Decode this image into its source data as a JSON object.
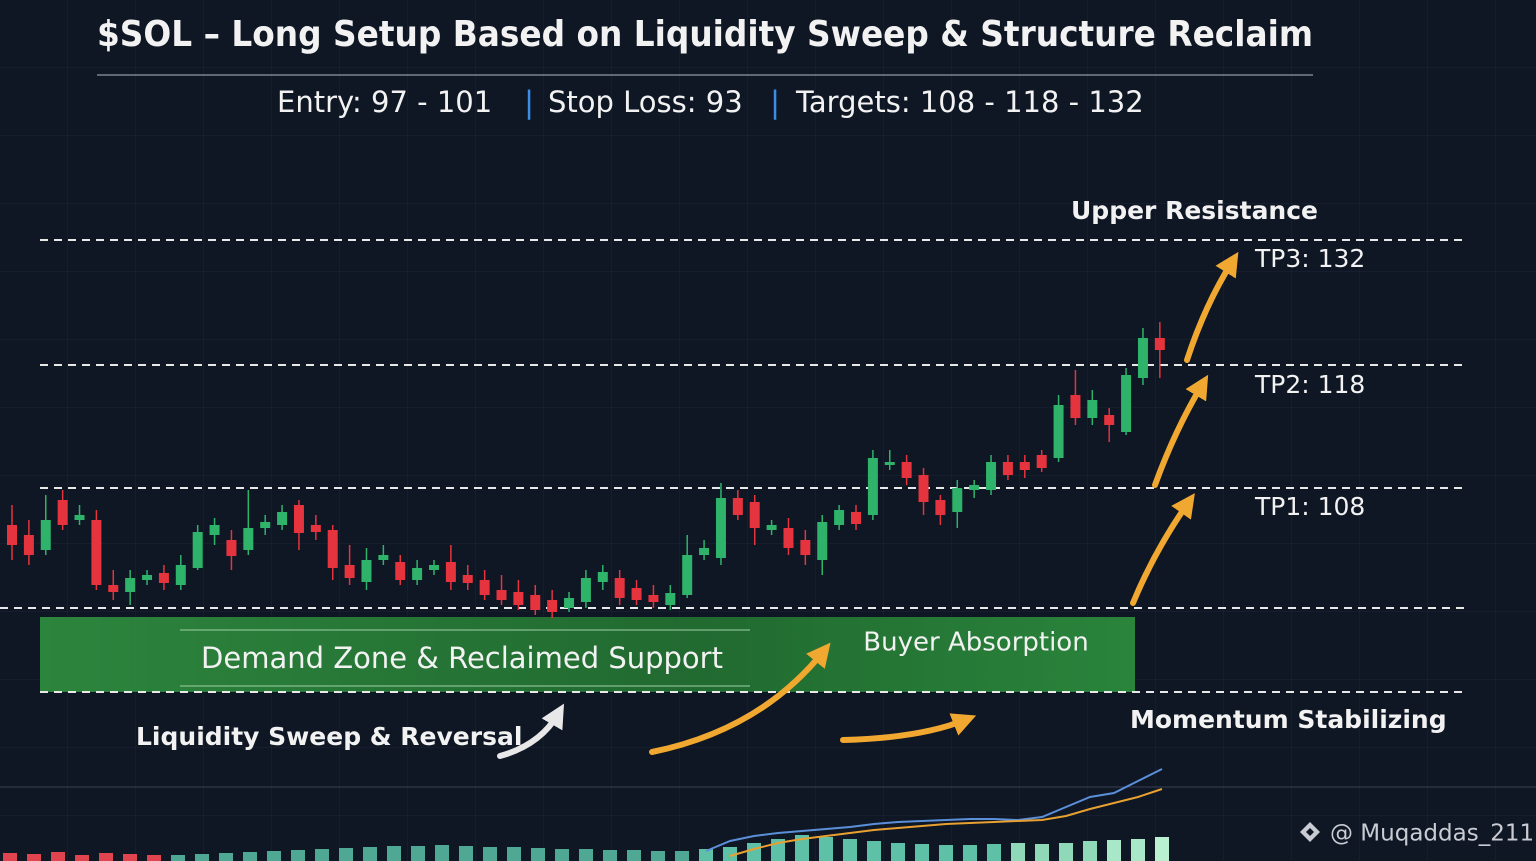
{
  "chart_data": [
    {
      "type": "candlestick",
      "title": "$SOL – Long Setup Based on Liquidity Sweep & Structure Reclaim",
      "subtitle": [
        "Entry: 97 - 101",
        "Stop Loss: 93",
        "Targets: 108 - 118 - 132"
      ],
      "annotations": [
        "Upper Resistance",
        "TP3: 132",
        "TP2: 118",
        "TP1: 108",
        "Demand Zone & Reclaimed Support",
        "Buyer Absorption",
        "Liquidity Sweep & Reversal",
        "Momentum Stabilizing"
      ],
      "credit": "@ Muqaddas_211",
      "up_color": "#2fb36a",
      "down_color": "#e5343d",
      "ylim": [
        71,
        157
      ],
      "open": [
        104.5,
        103.5,
        102,
        107,
        105,
        105,
        98.5,
        97.8,
        99,
        99.7,
        98.5,
        100.2,
        103.5,
        103,
        102,
        104.2,
        104.5,
        106.5,
        104.5,
        104,
        100.5,
        98.8,
        101,
        100.8,
        99,
        100,
        100.8,
        99.5,
        99,
        98,
        97.8,
        97.5,
        97,
        96.2,
        96.8,
        98.8,
        99.2,
        98.2,
        97.5,
        96.5,
        97.5,
        101.5,
        101.2,
        107.2,
        106.8,
        104,
        104.2,
        103,
        101,
        104.5,
        105.8,
        105.5,
        110.5,
        110.8,
        109.5,
        107,
        105.8,
        108,
        108,
        110.8,
        110.8,
        111.5,
        111.2,
        117.5,
        115.2,
        115.5,
        113.8,
        119.2,
        123.2
      ],
      "high": [
        106.5,
        105,
        107.5,
        108,
        106.5,
        106,
        100,
        100,
        100,
        100.5,
        101.5,
        104.5,
        105.2,
        104,
        108,
        105.5,
        106.5,
        107,
        105.5,
        104.5,
        102.5,
        102.2,
        102.5,
        101.5,
        101,
        101,
        102.5,
        100.5,
        100,
        99.5,
        99,
        98.5,
        98,
        97.8,
        100,
        100.5,
        100,
        99,
        98.5,
        98.5,
        103.5,
        103,
        108.7,
        108,
        107.5,
        105,
        105.2,
        104,
        105.5,
        106.5,
        106.5,
        112,
        112,
        111.5,
        110.2,
        107.5,
        109,
        109,
        111.5,
        111.5,
        111.5,
        112,
        117.5,
        120,
        118,
        116.2,
        120.2,
        124.2,
        124.8
      ],
      "low": [
        101,
        100.5,
        101.5,
        104,
        104.5,
        98,
        97,
        96.5,
        98.5,
        98,
        98,
        100,
        102.5,
        100,
        101.5,
        103.5,
        104,
        102,
        103,
        99,
        98.5,
        98,
        100.5,
        98.5,
        98.5,
        99.5,
        98,
        98,
        97,
        96.5,
        96,
        95.5,
        95.2,
        95.8,
        96.2,
        98,
        96.5,
        96.5,
        96.2,
        96,
        97.2,
        101,
        100.5,
        105,
        102.5,
        103.5,
        101.5,
        100.5,
        99.5,
        104,
        104,
        105,
        110,
        108.5,
        105.5,
        104.5,
        104.2,
        107.2,
        107.5,
        109,
        109.2,
        109.8,
        110.8,
        114.5,
        114.5,
        112.8,
        113.5,
        118.5,
        119.2
      ],
      "close": [
        102.5,
        101.5,
        105,
        104.5,
        105.5,
        98.5,
        97.8,
        99.2,
        99.5,
        98.7,
        100.5,
        103.8,
        104.5,
        101.4,
        104.2,
        104.8,
        105.8,
        103.7,
        103.8,
        100.2,
        99.2,
        101,
        101.5,
        99,
        100.2,
        100.5,
        98.8,
        98.7,
        97.5,
        97,
        96.5,
        96,
        95.8,
        97.2,
        99.2,
        99.8,
        97.2,
        97,
        96.8,
        97.7,
        101.5,
        102.2,
        107.2,
        105.5,
        104.2,
        104.5,
        102.2,
        101.5,
        104.8,
        106,
        104.6,
        111.2,
        110.8,
        109.2,
        106.8,
        105.5,
        108.2,
        108.5,
        110.8,
        109.5,
        110,
        110.2,
        116.5,
        115.2,
        117,
        114.5,
        119.5,
        123.2,
        122
      ]
    },
    {
      "type": "indicator",
      "ylim": [
        0,
        100
      ],
      "values": [
        8,
        7,
        9,
        6,
        8,
        7,
        6,
        6,
        7,
        8,
        9,
        10,
        11,
        12,
        13,
        14,
        15,
        15,
        16,
        15,
        14,
        14,
        13,
        12,
        12,
        11,
        11,
        10,
        10,
        12,
        14,
        18,
        22,
        26,
        24,
        22,
        20,
        18,
        17,
        16,
        16,
        17,
        18,
        17,
        18,
        20,
        21,
        22,
        24
      ],
      "colors": [
        "#e0454f",
        "#e0454f",
        "#e0454f",
        "#e0454f",
        "#e0454f",
        "#e0454f",
        "#e0454f",
        "#4fa894",
        "#4fa894",
        "#4fa894",
        "#4fa894",
        "#4fa894",
        "#4fa894",
        "#4fa894",
        "#4fa894",
        "#4fa894",
        "#4fa894",
        "#4fa894",
        "#4fa894",
        "#4fa894",
        "#4fa894",
        "#4fa894",
        "#4fa894",
        "#4fa894",
        "#4fa894",
        "#4fa894",
        "#4fa894",
        "#4fa894",
        "#4fa894",
        "#5fc0a8",
        "#5fc0a8",
        "#5fc0a8",
        "#5fc0a8",
        "#5fc0a8",
        "#5fc0a8",
        "#5fc0a8",
        "#5fc0a8",
        "#5fc0a8",
        "#5fc0a8",
        "#5fc0a8",
        "#5fc0a8",
        "#5fc0a8",
        "#8fd8b8",
        "#8fd8b8",
        "#8fd8b8",
        "#8fd8b8",
        "#a8e8c8",
        "#a8e8c8",
        "#b8f0d0"
      ],
      "series": [
        {
          "color": "#5b8fd8",
          "values": [
            null,
            null,
            null,
            null,
            null,
            null,
            null,
            null,
            null,
            null,
            null,
            null,
            null,
            null,
            null,
            null,
            null,
            null,
            null,
            null,
            null,
            null,
            null,
            null,
            null,
            null,
            null,
            null,
            null,
            10,
            20,
            25,
            28,
            30,
            32,
            34,
            37,
            39,
            40,
            41,
            42,
            42,
            41,
            44,
            54,
            64,
            68,
            80,
            92
          ]
        },
        {
          "color": "#e8a030",
          "values": [
            null,
            null,
            null,
            null,
            null,
            null,
            null,
            null,
            null,
            null,
            null,
            null,
            null,
            null,
            null,
            null,
            null,
            null,
            null,
            null,
            null,
            null,
            null,
            null,
            null,
            null,
            null,
            null,
            null,
            null,
            5,
            12,
            18,
            22,
            25,
            28,
            31,
            33,
            35,
            37,
            38,
            39,
            40,
            41,
            45,
            52,
            58,
            64,
            72
          ]
        }
      ]
    }
  ]
}
